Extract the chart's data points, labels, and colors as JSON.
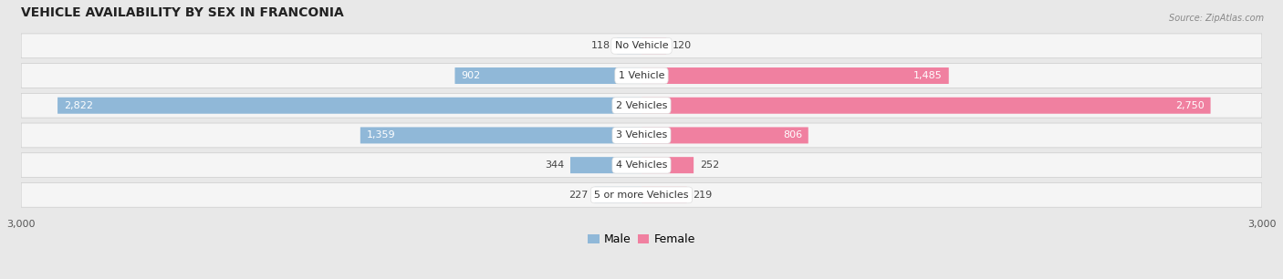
{
  "title": "VEHICLE AVAILABILITY BY SEX IN FRANCONIA",
  "source": "Source: ZipAtlas.com",
  "categories": [
    "No Vehicle",
    "1 Vehicle",
    "2 Vehicles",
    "3 Vehicles",
    "4 Vehicles",
    "5 or more Vehicles"
  ],
  "male_values": [
    118,
    902,
    2822,
    1359,
    344,
    227
  ],
  "female_values": [
    120,
    1485,
    2750,
    806,
    252,
    219
  ],
  "male_color": "#90b8d8",
  "female_color": "#f080a0",
  "male_color_large": "#7aaece",
  "female_color_large": "#ee6f95",
  "axis_max": 3000,
  "background_color": "#e8e8e8",
  "row_bg_color": "#f5f5f5",
  "title_fontsize": 10,
  "label_fontsize": 8,
  "value_fontsize": 8,
  "legend_fontsize": 9,
  "value_inside_threshold": 500
}
